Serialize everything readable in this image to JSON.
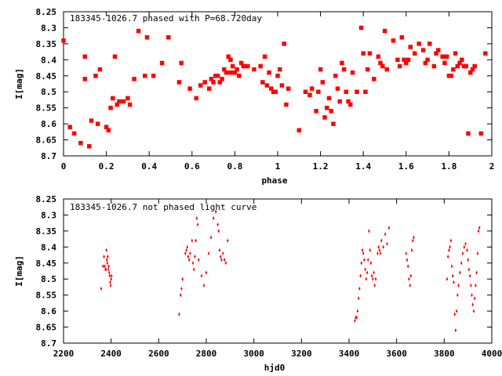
{
  "chart_data": [
    {
      "type": "scatter",
      "title": "183345-1026.7 phased with P=68.720day",
      "xlabel": "phase",
      "ylabel": "I[mag]",
      "xlim": [
        0,
        2
      ],
      "ylim": [
        8.7,
        8.25
      ],
      "y_inverted": true,
      "x_ticks": [
        "0",
        "0.2",
        "0.4",
        "0.6",
        "0.8",
        "1",
        "1.2",
        "1.4",
        "1.6",
        "1.8",
        "2"
      ],
      "x_tick_values": [
        0,
        0.2,
        0.4,
        0.6,
        0.8,
        1.0,
        1.2,
        1.4,
        1.6,
        1.8,
        2.0
      ],
      "y_ticks": [
        "8.25",
        "8.3",
        "8.35",
        "8.4",
        "8.45",
        "8.5",
        "8.55",
        "8.6",
        "8.65",
        "8.7"
      ],
      "y_tick_values": [
        8.25,
        8.3,
        8.35,
        8.4,
        8.45,
        8.5,
        8.55,
        8.6,
        8.65,
        8.7
      ],
      "grid": false,
      "legend": "none",
      "marker_color": "#ff0000",
      "series": [
        {
          "x": [
            0.0,
            0.03,
            0.05,
            0.08,
            0.1,
            0.1,
            0.12,
            0.13,
            0.15,
            0.16,
            0.17,
            0.2,
            0.21,
            0.22,
            0.23,
            0.24,
            0.25,
            0.26,
            0.28,
            0.3,
            0.31,
            0.33,
            0.35,
            0.38,
            0.39,
            0.42,
            0.46,
            0.49,
            0.54,
            0.55,
            0.59,
            0.62,
            0.64,
            0.66,
            0.68,
            0.69,
            0.7,
            0.71,
            0.72,
            0.73,
            0.74,
            0.75,
            0.76,
            0.77,
            0.78,
            0.78,
            0.79,
            0.8,
            0.81,
            0.82,
            0.83,
            0.84,
            0.86,
            0.89,
            0.92,
            0.93,
            0.94,
            0.95,
            0.96,
            0.97,
            0.98,
            0.99,
            1.0,
            1.01,
            1.02,
            1.03,
            1.04,
            1.05,
            1.1,
            1.13,
            1.15,
            1.16,
            1.18,
            1.19,
            1.2,
            1.21,
            1.22,
            1.23,
            1.24,
            1.25,
            1.26,
            1.27,
            1.28,
            1.29,
            1.3,
            1.31,
            1.32,
            1.33,
            1.34,
            1.35,
            1.37,
            1.39,
            1.4,
            1.41,
            1.42,
            1.43,
            1.45,
            1.47,
            1.48,
            1.49,
            1.5,
            1.51,
            1.54,
            1.56,
            1.57,
            1.58,
            1.59,
            1.6,
            1.61,
            1.62,
            1.64,
            1.66,
            1.68,
            1.69,
            1.7,
            1.71,
            1.73,
            1.74,
            1.75,
            1.77,
            1.78,
            1.79,
            1.8,
            1.81,
            1.82,
            1.83,
            1.84,
            1.85,
            1.86,
            1.87,
            1.88,
            1.89,
            1.9,
            1.91,
            1.92,
            1.95,
            1.97
          ],
          "y": [
            8.34,
            8.61,
            8.63,
            8.66,
            8.39,
            8.46,
            8.67,
            8.59,
            8.45,
            8.6,
            8.43,
            8.61,
            8.62,
            8.55,
            8.52,
            8.39,
            8.54,
            8.53,
            8.53,
            8.52,
            8.54,
            8.46,
            8.31,
            8.45,
            8.33,
            8.45,
            8.41,
            8.33,
            8.47,
            8.41,
            8.49,
            8.52,
            8.48,
            8.47,
            8.49,
            8.46,
            8.47,
            8.45,
            8.45,
            8.47,
            8.46,
            8.43,
            8.44,
            8.39,
            8.44,
            8.4,
            8.42,
            8.44,
            8.43,
            8.45,
            8.41,
            8.42,
            8.42,
            8.43,
            8.42,
            8.47,
            8.39,
            8.48,
            8.44,
            8.49,
            8.5,
            8.5,
            8.45,
            8.43,
            8.48,
            8.35,
            8.54,
            8.49,
            8.62,
            8.5,
            8.51,
            8.49,
            8.56,
            8.5,
            8.43,
            8.47,
            8.58,
            8.55,
            8.52,
            8.56,
            8.6,
            8.45,
            8.49,
            8.53,
            8.41,
            8.43,
            8.5,
            8.53,
            8.54,
            8.44,
            8.5,
            8.3,
            8.38,
            8.5,
            8.43,
            8.38,
            8.46,
            8.39,
            8.41,
            8.42,
            8.31,
            8.43,
            8.34,
            8.4,
            8.42,
            8.33,
            8.4,
            8.41,
            8.4,
            8.36,
            8.38,
            8.35,
            8.37,
            8.41,
            8.4,
            8.35,
            8.42,
            8.38,
            8.37,
            8.39,
            8.41,
            8.39,
            8.45,
            8.45,
            8.43,
            8.38,
            8.42,
            8.41,
            8.4,
            8.42,
            8.42,
            8.63,
            8.44,
            8.43,
            8.42,
            8.63,
            8.38
          ]
        }
      ]
    },
    {
      "type": "scatter",
      "title": "183345-1026.7 not phased light curve",
      "xlabel": "hjd0",
      "ylabel": "I[mag]",
      "xlim": [
        2200,
        4000
      ],
      "ylim": [
        8.7,
        8.25
      ],
      "y_inverted": true,
      "x_ticks": [
        "2200",
        "2400",
        "2600",
        "2800",
        "3000",
        "3200",
        "3400",
        "3600",
        "3800",
        "4000"
      ],
      "x_tick_values": [
        2200,
        2400,
        2600,
        2800,
        3000,
        3200,
        3400,
        3600,
        3800,
        4000
      ],
      "y_ticks": [
        "8.25",
        "8.3",
        "8.35",
        "8.4",
        "8.45",
        "8.5",
        "8.55",
        "8.6",
        "8.65",
        "8.7"
      ],
      "y_tick_values": [
        8.25,
        8.3,
        8.35,
        8.4,
        8.45,
        8.5,
        8.55,
        8.6,
        8.65,
        8.7
      ],
      "grid": false,
      "legend": "none",
      "marker_color": "#ff0000",
      "series": [
        {
          "x": [
            2358,
            2366,
            2370,
            2373,
            2376,
            2378,
            2380,
            2382,
            2384,
            2386,
            2388,
            2390,
            2392,
            2394,
            2396,
            2398,
            2400,
            2402,
            2686,
            2692,
            2696,
            2700,
            2712,
            2716,
            2720,
            2724,
            2728,
            2732,
            2740,
            2744,
            2748,
            2752,
            2756,
            2760,
            2764,
            2768,
            2780,
            2790,
            2800,
            2810,
            2820,
            2830,
            2840,
            2848,
            2852,
            2856,
            2860,
            2864,
            2870,
            2876,
            2882,
            2890,
            3424,
            3428,
            3432,
            3436,
            3440,
            3444,
            3448,
            3452,
            3456,
            3460,
            3464,
            3468,
            3472,
            3476,
            3480,
            3484,
            3488,
            3492,
            3496,
            3500,
            3504,
            3508,
            3512,
            3520,
            3524,
            3528,
            3532,
            3536,
            3544,
            3552,
            3560,
            3568,
            3640,
            3644,
            3648,
            3652,
            3656,
            3660,
            3664,
            3668,
            3672,
            3812,
            3816,
            3820,
            3824,
            3828,
            3832,
            3836,
            3840,
            3844,
            3848,
            3852,
            3856,
            3860,
            3866,
            3872,
            3878,
            3884,
            3890,
            3896,
            3900,
            3904,
            3908,
            3912,
            3916,
            3920,
            3924,
            3928,
            3932,
            3936,
            3940,
            3944,
            3948
          ],
          "y": [
            8.53,
            8.46,
            8.43,
            8.46,
            8.47,
            8.47,
            8.41,
            8.44,
            8.45,
            8.43,
            8.47,
            8.46,
            8.48,
            8.49,
            8.51,
            8.52,
            8.5,
            8.49,
            8.61,
            8.55,
            8.53,
            8.5,
            8.42,
            8.41,
            8.4,
            8.43,
            8.44,
            8.42,
            8.38,
            8.45,
            8.47,
            8.43,
            8.38,
            8.31,
            8.33,
            8.44,
            8.49,
            8.52,
            8.48,
            8.42,
            8.37,
            8.31,
            8.29,
            8.33,
            8.35,
            8.41,
            8.43,
            8.44,
            8.42,
            8.44,
            8.45,
            8.38,
            8.63,
            8.62,
            8.62,
            8.6,
            8.56,
            8.53,
            8.49,
            8.45,
            8.41,
            8.42,
            8.44,
            8.47,
            8.5,
            8.48,
            8.44,
            8.35,
            8.41,
            8.45,
            8.49,
            8.5,
            8.48,
            8.52,
            8.5,
            8.42,
            8.4,
            8.41,
            8.42,
            8.38,
            8.4,
            8.36,
            8.39,
            8.34,
            8.42,
            8.44,
            8.46,
            8.5,
            8.52,
            8.49,
            8.41,
            8.38,
            8.37,
            8.5,
            8.43,
            8.41,
            8.4,
            8.38,
            8.46,
            8.49,
            8.51,
            8.61,
            8.66,
            8.6,
            8.55,
            8.52,
            8.48,
            8.45,
            8.42,
            8.4,
            8.39,
            8.41,
            8.44,
            8.47,
            8.49,
            8.52,
            8.55,
            8.58,
            8.6,
            8.56,
            8.52,
            8.48,
            8.42,
            8.35,
            8.34
          ]
        }
      ]
    }
  ]
}
